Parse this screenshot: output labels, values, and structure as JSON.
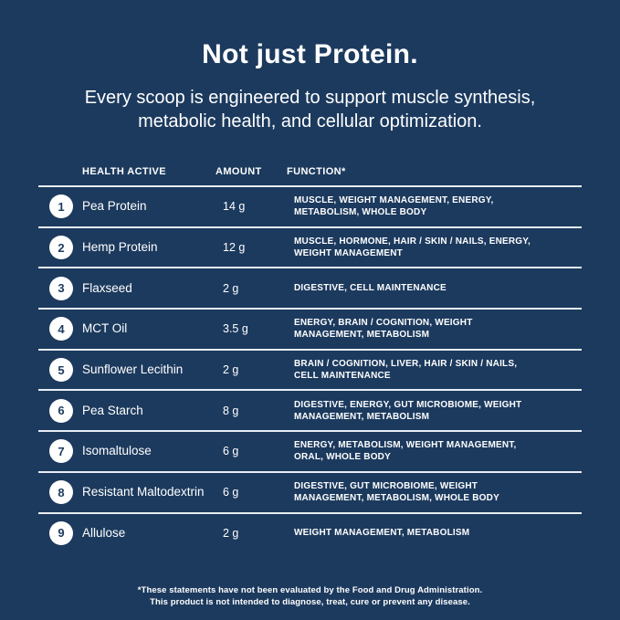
{
  "theme": {
    "background": "#1c3a5e",
    "text": "#ffffff",
    "divider": "#e9eef5",
    "badge_background": "#ffffff",
    "badge_text": "#1c3a5e"
  },
  "header": {
    "title": "Not just Protein.",
    "subtitle_line1": "Every scoop is engineered to support muscle synthesis,",
    "subtitle_line2": "metabolic health, and cellular optimization."
  },
  "table": {
    "columns": {
      "health_active": "HEALTH ACTIVE",
      "amount": "AMOUNT",
      "function": "FUNCTION*"
    },
    "rows": [
      {
        "number": "1",
        "name": "Pea Protein",
        "amount": "14 g",
        "function_line1": "MUSCLE, WEIGHT MANAGEMENT, ENERGY,",
        "function_line2": "METABOLISM, WHOLE BODY"
      },
      {
        "number": "2",
        "name": "Hemp Protein",
        "amount": "12 g",
        "function_line1": "MUSCLE, HORMONE, HAIR / SKIN / NAILS, ENERGY,",
        "function_line2": "WEIGHT MANAGEMENT"
      },
      {
        "number": "3",
        "name": "Flaxseed",
        "amount": "2 g",
        "function_line1": "DIGESTIVE, CELL MAINTENANCE",
        "function_line2": ""
      },
      {
        "number": "4",
        "name": "MCT Oil",
        "amount": "3.5 g",
        "function_line1": "ENERGY, BRAIN / COGNITION, WEIGHT",
        "function_line2": "MANAGEMENT, METABOLISM"
      },
      {
        "number": "5",
        "name": "Sunflower Lecithin",
        "amount": "2 g",
        "function_line1": "BRAIN / COGNITION, LIVER, HAIR / SKIN / NAILS,",
        "function_line2": "CELL MAINTENANCE"
      },
      {
        "number": "6",
        "name": "Pea Starch",
        "amount": "8 g",
        "function_line1": "DIGESTIVE, ENERGY, GUT MICROBIOME, WEIGHT",
        "function_line2": "MANAGEMENT, METABOLISM"
      },
      {
        "number": "7",
        "name": "Isomaltulose",
        "amount": "6 g",
        "function_line1": "ENERGY, METABOLISM, WEIGHT MANAGEMENT,",
        "function_line2": "ORAL, WHOLE BODY"
      },
      {
        "number": "8",
        "name": "Resistant Maltodextrin",
        "amount": "6 g",
        "function_line1": "DIGESTIVE, GUT MICROBIOME, WEIGHT",
        "function_line2": "MANAGEMENT, METABOLISM, WHOLE BODY"
      },
      {
        "number": "9",
        "name": "Allulose",
        "amount": "2 g",
        "function_line1": "WEIGHT MANAGEMENT, METABOLISM",
        "function_line2": ""
      }
    ]
  },
  "footer": {
    "line1": "*These statements have not been evaluated by the Food and Drug Administration.",
    "line2": "This product is not intended to diagnose, treat, cure or prevent any disease."
  }
}
